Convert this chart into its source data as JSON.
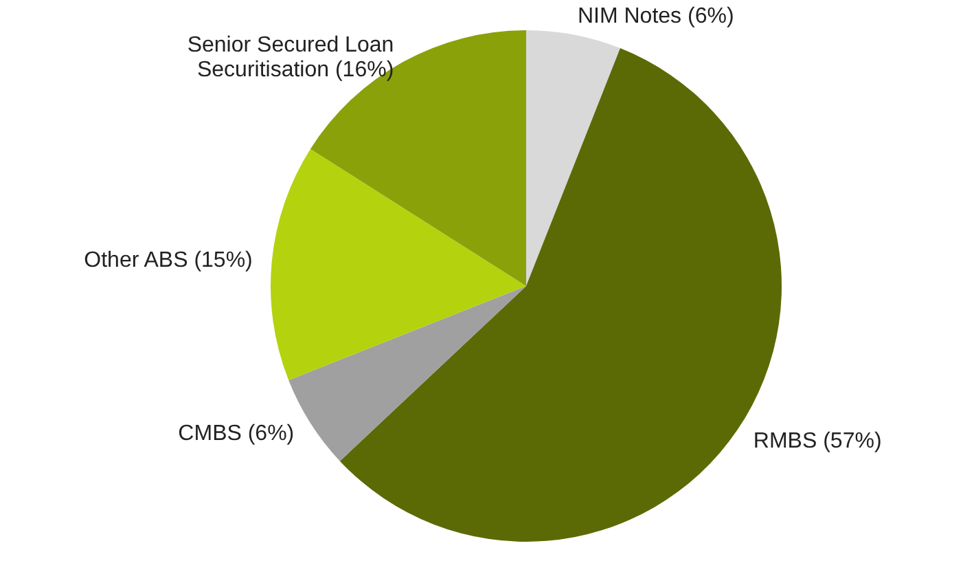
{
  "chart_data": {
    "type": "pie",
    "categories": [
      "NIM Notes (6%)",
      "RMBS (57%)",
      "CMBS (6%)",
      "Other ABS (15%)",
      "Senior Secured Loan Securitisation (16%)"
    ],
    "values": [
      6,
      57,
      6,
      15,
      16
    ],
    "colors": [
      "#d9d9d9",
      "#5c6a05",
      "#a0a0a0",
      "#b5d20f",
      "#8aa10a"
    ]
  }
}
